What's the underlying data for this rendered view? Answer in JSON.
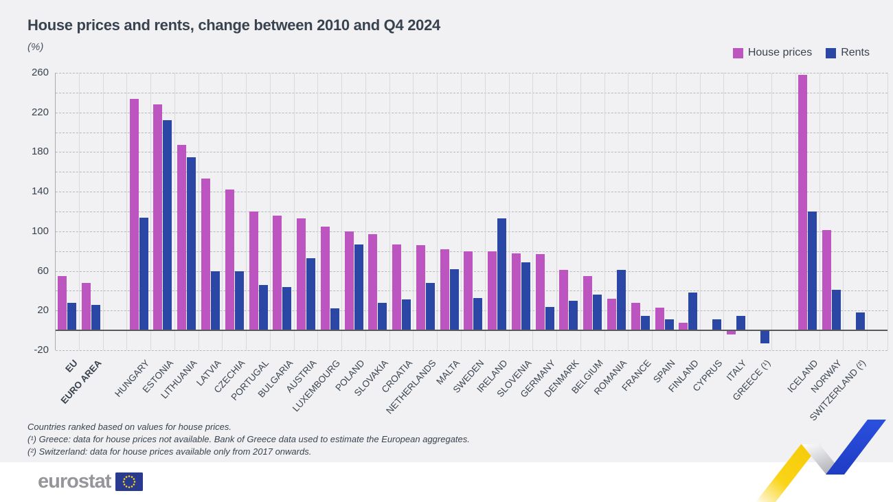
{
  "header": {
    "title": "House prices and rents, change between 2010 and Q4 2024",
    "unit": "(%)"
  },
  "chart_data": {
    "type": "bar",
    "title": "House prices and rents, change between 2010 and Q4 2024",
    "ylabel": "(%)",
    "ylim": [
      -20,
      260
    ],
    "grid_step": 20,
    "yticks_labeled": [
      260,
      220,
      180,
      140,
      100,
      60,
      20,
      -20
    ],
    "legend_position": "top-right",
    "categories": [
      "EU",
      "EURO AREA",
      "HUNGARY",
      "ESTONIA",
      "LITHUANIA",
      "LATVIA",
      "CZECHIA",
      "PORTUGAL",
      "BULGARIA",
      "AUSTRIA",
      "LUXEMBOURG",
      "POLAND",
      "SLOVAKIA",
      "CROATIA",
      "NETHERLANDS",
      "MALTA",
      "SWEDEN",
      "IRELAND",
      "SLOVENIA",
      "GERMANY",
      "DENMARK",
      "BELGIUM",
      "ROMANIA",
      "FRANCE",
      "SPAIN",
      "FINLAND",
      "CYPRUS",
      "ITALY",
      "GREECE (¹)",
      "ICELAND",
      "NORWAY",
      "SWITZERLAND (²)"
    ],
    "emphasized_categories": [
      "EU",
      "EURO AREA"
    ],
    "gaps_after": [
      "EURO AREA",
      "GREECE (¹)"
    ],
    "series": [
      {
        "name": "House prices",
        "color": "#bc55c0",
        "values": [
          55,
          48,
          234,
          228,
          187,
          153,
          142,
          120,
          116,
          113,
          105,
          100,
          97,
          87,
          86,
          82,
          80,
          80,
          78,
          77,
          61,
          55,
          32,
          28,
          23,
          8,
          0,
          -4,
          null,
          258,
          101,
          null
        ]
      },
      {
        "name": "Rents",
        "color": "#2b47a5",
        "values": [
          28,
          26,
          114,
          212,
          175,
          60,
          60,
          46,
          44,
          73,
          22,
          87,
          28,
          31,
          48,
          62,
          33,
          113,
          69,
          24,
          30,
          36,
          61,
          15,
          11,
          38,
          11,
          15,
          -13,
          120,
          41,
          18
        ]
      }
    ]
  },
  "footnotes": [
    "Countries ranked based on values for house prices.",
    "(¹) Greece: data for house prices not available. Bank of Greece data used to estimate the European aggregates.",
    "(²) Switzerland: data for house prices available only from 2017 onwards."
  ],
  "branding": {
    "logo_text": "eurostat"
  },
  "colors": {
    "house_prices": "#bc55c0",
    "rents": "#2b47a5",
    "background": "#f1f1f3",
    "footer_background": "#ffffff",
    "text": "#39434f",
    "ribbon_yellow": "#f8d00a",
    "ribbon_blue": "#2444d2",
    "flag_blue": "#2a3b8f",
    "flag_stars": "#ffd617"
  }
}
